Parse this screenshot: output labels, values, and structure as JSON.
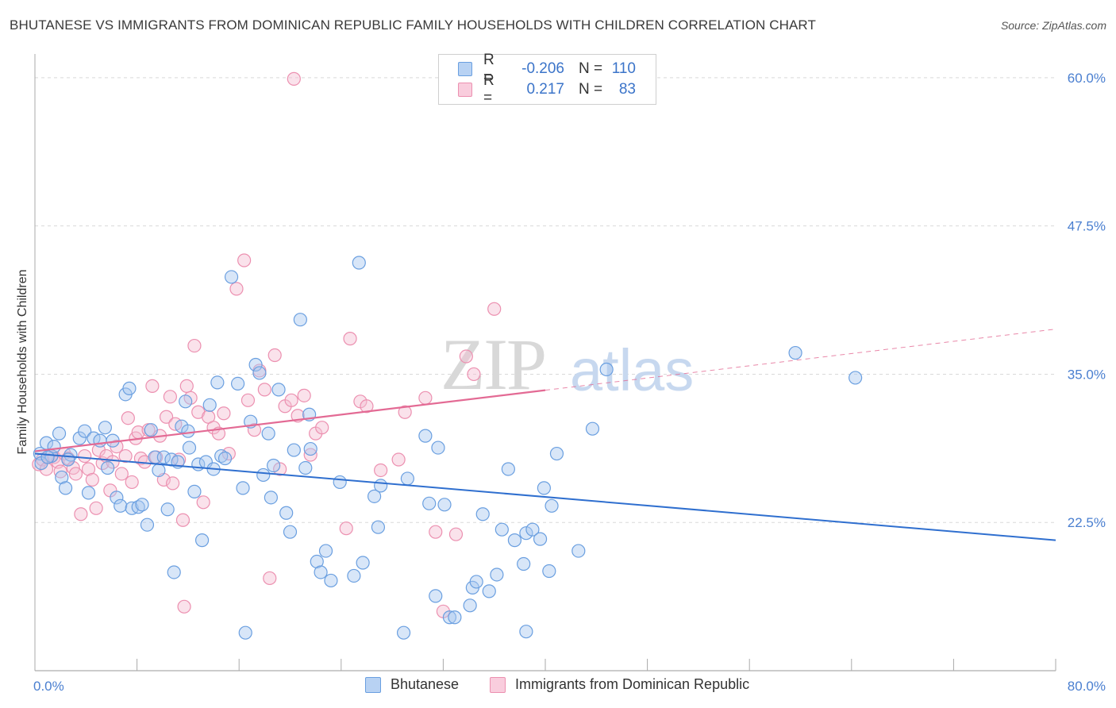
{
  "header": {
    "title": "BHUTANESE VS IMMIGRANTS FROM DOMINICAN REPUBLIC FAMILY HOUSEHOLDS WITH CHILDREN CORRELATION CHART",
    "source": "Source: ZipAtlas.com"
  },
  "watermark": {
    "zip": "ZIP",
    "atlas": "atlas"
  },
  "legend": {
    "r_label": "R =",
    "n_label": "N =",
    "rows": [
      {
        "name": "Bhutanese",
        "r": "-0.206",
        "n": "110"
      },
      {
        "name": "Immigrants from Dominican Republic",
        "r": "0.217",
        "n": "83"
      }
    ]
  },
  "colors": {
    "blue_fill": "#a9c8ef",
    "blue_stroke": "#6a9fe0",
    "blue_line": "#2f6fcf",
    "pink_fill": "#f5bfd2",
    "pink_stroke": "#ec90b0",
    "pink_line": "#e36a94",
    "grid": "#d9d9d9",
    "tick_text": "#4a7fd0"
  },
  "chart_data": {
    "type": "scatter",
    "title": "BHUTANESE VS IMMIGRANTS FROM DOMINICAN REPUBLIC FAMILY HOUSEHOLDS WITH CHILDREN CORRELATION CHART",
    "xlabel": "",
    "ylabel": "Family Households with Children",
    "xlim": [
      0,
      80
    ],
    "ylim": [
      10,
      62
    ],
    "x_tick_labels": [
      "0.0%",
      "80.0%"
    ],
    "y_ticks": [
      22.5,
      35.0,
      47.5,
      60.0
    ],
    "y_tick_labels": [
      "22.5%",
      "35.0%",
      "47.5%",
      "60.0%"
    ],
    "legend_position": "bottom-center",
    "series": [
      {
        "name": "Bhutanese",
        "r": -0.206,
        "n": 110,
        "trend": {
          "x0": 0.0,
          "y0": 28.3,
          "x1": 80.0,
          "y1": 21.0,
          "dashed_from": null
        },
        "points": [
          [
            0.4,
            28.3
          ],
          [
            0.5,
            27.5
          ],
          [
            0.9,
            29.2
          ],
          [
            1.3,
            28.1
          ],
          [
            1.5,
            28.9
          ],
          [
            1.9,
            30.0
          ],
          [
            2.1,
            26.3
          ],
          [
            2.4,
            25.4
          ],
          [
            2.8,
            28.2
          ],
          [
            3.5,
            29.6
          ],
          [
            3.9,
            30.2
          ],
          [
            4.2,
            25.0
          ],
          [
            4.6,
            29.6
          ],
          [
            5.1,
            29.4
          ],
          [
            5.5,
            30.5
          ],
          [
            5.7,
            27.1
          ],
          [
            6.1,
            29.4
          ],
          [
            6.4,
            24.6
          ],
          [
            6.7,
            23.9
          ],
          [
            7.1,
            33.3
          ],
          [
            7.4,
            33.8
          ],
          [
            7.6,
            23.7
          ],
          [
            8.1,
            23.8
          ],
          [
            8.4,
            24.0
          ],
          [
            8.8,
            22.3
          ],
          [
            9.1,
            30.3
          ],
          [
            9.4,
            28.0
          ],
          [
            9.7,
            26.9
          ],
          [
            10.1,
            28.0
          ],
          [
            10.4,
            23.6
          ],
          [
            10.7,
            27.8
          ],
          [
            10.9,
            18.3
          ],
          [
            11.2,
            27.6
          ],
          [
            11.5,
            30.6
          ],
          [
            11.8,
            32.7
          ],
          [
            12.1,
            28.8
          ],
          [
            12.5,
            25.1
          ],
          [
            12.8,
            27.4
          ],
          [
            13.1,
            21.0
          ],
          [
            13.4,
            27.6
          ],
          [
            13.7,
            32.4
          ],
          [
            14.0,
            27.0
          ],
          [
            14.3,
            34.3
          ],
          [
            14.6,
            28.1
          ],
          [
            14.9,
            27.9
          ],
          [
            15.4,
            43.2
          ],
          [
            15.9,
            34.2
          ],
          [
            16.3,
            25.4
          ],
          [
            16.5,
            13.2
          ],
          [
            16.9,
            31.0
          ],
          [
            17.3,
            35.8
          ],
          [
            17.6,
            35.1
          ],
          [
            17.9,
            26.5
          ],
          [
            18.3,
            30.0
          ],
          [
            18.5,
            24.6
          ],
          [
            18.7,
            27.3
          ],
          [
            19.1,
            33.7
          ],
          [
            19.7,
            23.3
          ],
          [
            20.0,
            21.7
          ],
          [
            20.3,
            28.6
          ],
          [
            20.8,
            39.6
          ],
          [
            21.2,
            27.1
          ],
          [
            21.5,
            31.6
          ],
          [
            21.6,
            28.7
          ],
          [
            22.1,
            19.2
          ],
          [
            22.4,
            18.3
          ],
          [
            22.8,
            20.1
          ],
          [
            23.2,
            17.6
          ],
          [
            23.9,
            25.9
          ],
          [
            25.4,
            44.4
          ],
          [
            25.7,
            19.1
          ],
          [
            26.6,
            24.7
          ],
          [
            26.9,
            22.1
          ],
          [
            27.1,
            25.6
          ],
          [
            28.9,
            13.2
          ],
          [
            29.2,
            26.2
          ],
          [
            30.6,
            29.8
          ],
          [
            30.9,
            24.1
          ],
          [
            31.4,
            16.3
          ],
          [
            31.6,
            28.8
          ],
          [
            32.1,
            24.0
          ],
          [
            32.5,
            14.5
          ],
          [
            32.9,
            14.5
          ],
          [
            34.1,
            15.5
          ],
          [
            34.3,
            17.0
          ],
          [
            34.6,
            17.5
          ],
          [
            35.1,
            23.2
          ],
          [
            35.6,
            16.7
          ],
          [
            36.2,
            18.1
          ],
          [
            36.6,
            21.9
          ],
          [
            37.1,
            27.0
          ],
          [
            37.6,
            21.0
          ],
          [
            38.5,
            21.6
          ],
          [
            38.3,
            19.0
          ],
          [
            38.5,
            13.3
          ],
          [
            39.0,
            21.9
          ],
          [
            39.6,
            21.1
          ],
          [
            39.9,
            25.4
          ],
          [
            40.3,
            18.4
          ],
          [
            40.5,
            23.9
          ],
          [
            40.9,
            28.3
          ],
          [
            42.6,
            20.1
          ],
          [
            43.7,
            30.4
          ],
          [
            44.8,
            35.4
          ],
          [
            59.6,
            36.8
          ],
          [
            64.3,
            34.7
          ],
          [
            1.0,
            28.0
          ],
          [
            2.6,
            27.8
          ],
          [
            12.0,
            30.2
          ],
          [
            25.0,
            18.0
          ]
        ]
      },
      {
        "name": "Immigrants from Dominican Republic",
        "r": 0.217,
        "n": 83,
        "trend": {
          "x0": 0.0,
          "y0": 28.5,
          "x1": 80.0,
          "y1": 38.8,
          "dashed_from": 40.0
        },
        "points": [
          [
            0.3,
            27.4
          ],
          [
            0.6,
            27.8
          ],
          [
            0.9,
            27.0
          ],
          [
            1.2,
            28.1
          ],
          [
            1.5,
            28.0
          ],
          [
            1.8,
            27.6
          ],
          [
            2.0,
            26.8
          ],
          [
            2.3,
            28.3
          ],
          [
            2.6,
            27.9
          ],
          [
            3.0,
            27.1
          ],
          [
            3.2,
            26.6
          ],
          [
            3.6,
            23.2
          ],
          [
            3.9,
            28.1
          ],
          [
            4.2,
            27.0
          ],
          [
            4.5,
            26.1
          ],
          [
            4.8,
            23.7
          ],
          [
            5.0,
            28.6
          ],
          [
            5.3,
            27.5
          ],
          [
            5.6,
            28.1
          ],
          [
            5.9,
            25.2
          ],
          [
            6.1,
            27.6
          ],
          [
            6.4,
            28.9
          ],
          [
            6.8,
            26.6
          ],
          [
            7.1,
            28.1
          ],
          [
            7.3,
            31.3
          ],
          [
            7.6,
            25.9
          ],
          [
            7.9,
            29.6
          ],
          [
            8.1,
            30.1
          ],
          [
            8.3,
            27.9
          ],
          [
            8.6,
            27.6
          ],
          [
            8.9,
            30.3
          ],
          [
            9.2,
            34.0
          ],
          [
            9.5,
            28.0
          ],
          [
            9.8,
            29.8
          ],
          [
            10.1,
            26.1
          ],
          [
            10.3,
            31.4
          ],
          [
            10.6,
            33.1
          ],
          [
            10.8,
            25.8
          ],
          [
            11.0,
            30.8
          ],
          [
            11.3,
            27.8
          ],
          [
            11.6,
            22.7
          ],
          [
            11.9,
            34.0
          ],
          [
            12.2,
            33.0
          ],
          [
            12.5,
            37.4
          ],
          [
            12.8,
            31.8
          ],
          [
            13.2,
            24.2
          ],
          [
            13.6,
            31.4
          ],
          [
            14.0,
            30.5
          ],
          [
            14.4,
            30.0
          ],
          [
            14.8,
            31.7
          ],
          [
            15.2,
            28.3
          ],
          [
            15.8,
            42.2
          ],
          [
            16.4,
            44.6
          ],
          [
            16.7,
            32.8
          ],
          [
            17.2,
            30.3
          ],
          [
            17.6,
            35.3
          ],
          [
            18.0,
            33.7
          ],
          [
            18.4,
            17.8
          ],
          [
            18.8,
            36.6
          ],
          [
            19.2,
            27.0
          ],
          [
            19.6,
            32.3
          ],
          [
            20.1,
            32.8
          ],
          [
            20.6,
            31.5
          ],
          [
            21.1,
            33.2
          ],
          [
            21.6,
            28.2
          ],
          [
            22.0,
            30.0
          ],
          [
            22.5,
            30.5
          ],
          [
            24.4,
            22.0
          ],
          [
            24.7,
            38.0
          ],
          [
            25.5,
            32.7
          ],
          [
            26.0,
            32.3
          ],
          [
            27.1,
            26.9
          ],
          [
            28.5,
            27.8
          ],
          [
            29.0,
            31.8
          ],
          [
            30.6,
            33.0
          ],
          [
            31.4,
            21.7
          ],
          [
            32.0,
            15.0
          ],
          [
            33.0,
            21.5
          ],
          [
            33.8,
            36.5
          ],
          [
            34.4,
            35.0
          ],
          [
            36.0,
            40.5
          ],
          [
            11.7,
            15.4
          ],
          [
            20.3,
            59.9
          ]
        ]
      }
    ]
  }
}
